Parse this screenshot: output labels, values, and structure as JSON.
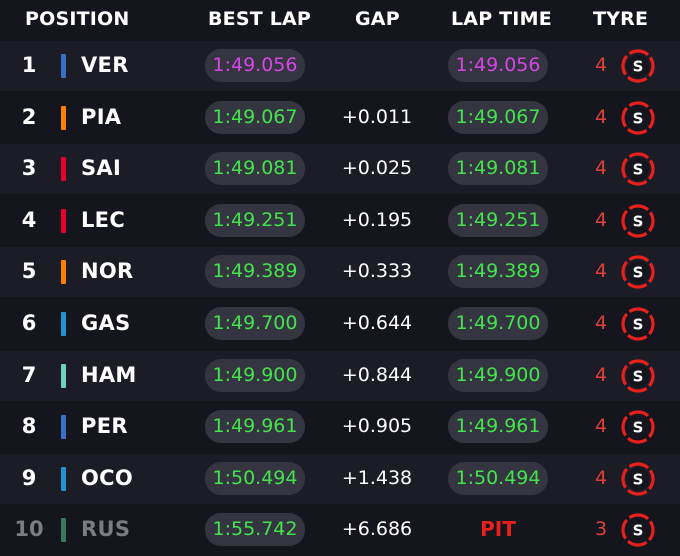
{
  "header": {
    "position": "POSITION",
    "best_lap": "BEST LAP",
    "gap": "GAP",
    "lap_time": "LAP TIME",
    "tyre": "TYRE"
  },
  "colors": {
    "background": "#15151e",
    "row_alt": "#1c1c27",
    "pill": "#343541",
    "personal_best": "#43e34b",
    "fastest": "#d645e6",
    "soft_tyre": "#e8201c"
  },
  "rows": [
    {
      "position": "1",
      "driver": "VER",
      "team_color": "#3671c6",
      "best_lap": "1:49.056",
      "best_lap_state": "fastest",
      "gap": "",
      "lap_time": "1:49.056",
      "lap_state": "fastest",
      "tyre_laps": "4",
      "tyre": "S"
    },
    {
      "position": "2",
      "driver": "PIA",
      "team_color": "#ff8000",
      "best_lap": "1:49.067",
      "best_lap_state": "personal",
      "gap": "+0.011",
      "lap_time": "1:49.067",
      "lap_state": "personal",
      "tyre_laps": "4",
      "tyre": "S"
    },
    {
      "position": "3",
      "driver": "SAI",
      "team_color": "#e8002d",
      "best_lap": "1:49.081",
      "best_lap_state": "personal",
      "gap": "+0.025",
      "lap_time": "1:49.081",
      "lap_state": "personal",
      "tyre_laps": "4",
      "tyre": "S"
    },
    {
      "position": "4",
      "driver": "LEC",
      "team_color": "#e8002d",
      "best_lap": "1:49.251",
      "best_lap_state": "personal",
      "gap": "+0.195",
      "lap_time": "1:49.251",
      "lap_state": "personal",
      "tyre_laps": "4",
      "tyre": "S"
    },
    {
      "position": "5",
      "driver": "NOR",
      "team_color": "#ff8000",
      "best_lap": "1:49.389",
      "best_lap_state": "personal",
      "gap": "+0.333",
      "lap_time": "1:49.389",
      "lap_state": "personal",
      "tyre_laps": "4",
      "tyre": "S"
    },
    {
      "position": "6",
      "driver": "GAS",
      "team_color": "#2293d1",
      "best_lap": "1:49.700",
      "best_lap_state": "personal",
      "gap": "+0.644",
      "lap_time": "1:49.700",
      "lap_state": "personal",
      "tyre_laps": "4",
      "tyre": "S"
    },
    {
      "position": "7",
      "driver": "HAM",
      "team_color": "#6cd3bf",
      "best_lap": "1:49.900",
      "best_lap_state": "personal",
      "gap": "+0.844",
      "lap_time": "1:49.900",
      "lap_state": "personal",
      "tyre_laps": "4",
      "tyre": "S"
    },
    {
      "position": "8",
      "driver": "PER",
      "team_color": "#3671c6",
      "best_lap": "1:49.961",
      "best_lap_state": "personal",
      "gap": "+0.905",
      "lap_time": "1:49.961",
      "lap_state": "personal",
      "tyre_laps": "4",
      "tyre": "S"
    },
    {
      "position": "9",
      "driver": "OCO",
      "team_color": "#2293d1",
      "best_lap": "1:50.494",
      "best_lap_state": "personal",
      "gap": "+1.438",
      "lap_time": "1:50.494",
      "lap_state": "personal",
      "tyre_laps": "4",
      "tyre": "S"
    },
    {
      "position": "10",
      "driver": "RUS",
      "team_color": "#3a7a5c",
      "best_lap": "1:55.742",
      "best_lap_state": "personal",
      "gap": "+6.686",
      "lap_time": "PIT",
      "lap_state": "pit",
      "tyre_laps": "3",
      "tyre": "S",
      "retired_style": true
    }
  ]
}
